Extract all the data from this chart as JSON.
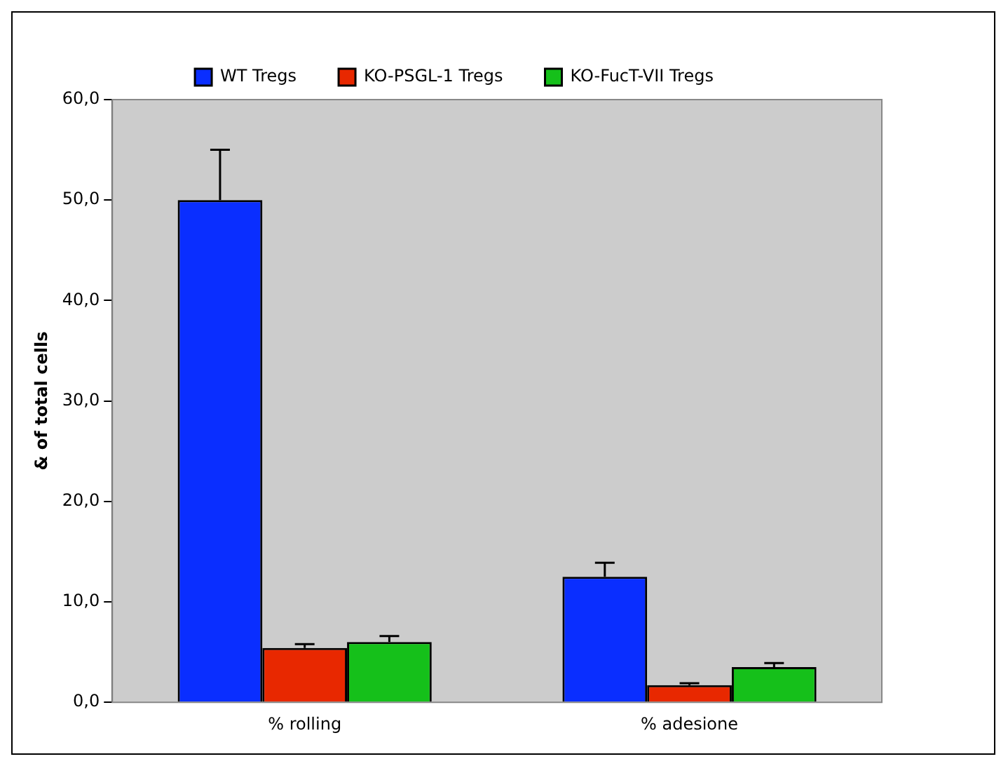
{
  "chart_data": {
    "type": "bar",
    "ylabel": "& of total cells",
    "categories": [
      "% rolling",
      "% adesione"
    ],
    "series": [
      {
        "name": "WT Tregs",
        "color": "#0a2eff",
        "values": [
          50.0,
          12.5
        ],
        "errors": [
          [
            50.0,
            55.0
          ],
          [
            12.5,
            13.9
          ]
        ]
      },
      {
        "name": "KO-PSGL-1 Tregs",
        "color": "#e82800",
        "values": [
          5.4,
          1.7
        ],
        "errors": [
          [
            5.4,
            5.8
          ],
          [
            1.7,
            1.9
          ]
        ]
      },
      {
        "name": "KO-FucT-VII Tregs",
        "color": "#15c01a",
        "values": [
          6.0,
          3.5
        ],
        "errors": [
          [
            6.0,
            6.6
          ],
          [
            3.5,
            3.9
          ]
        ]
      }
    ],
    "ylim": [
      0,
      60
    ],
    "yticks": [
      {
        "value": 0,
        "label": "0,0"
      },
      {
        "value": 10,
        "label": "10,0"
      },
      {
        "value": 20,
        "label": "20,0"
      },
      {
        "value": 30,
        "label": "30,0"
      },
      {
        "value": 40,
        "label": "40,0"
      },
      {
        "value": 50,
        "label": "50,0"
      },
      {
        "value": 60,
        "label": "60,0"
      }
    ],
    "grid": false,
    "legend": "top"
  }
}
